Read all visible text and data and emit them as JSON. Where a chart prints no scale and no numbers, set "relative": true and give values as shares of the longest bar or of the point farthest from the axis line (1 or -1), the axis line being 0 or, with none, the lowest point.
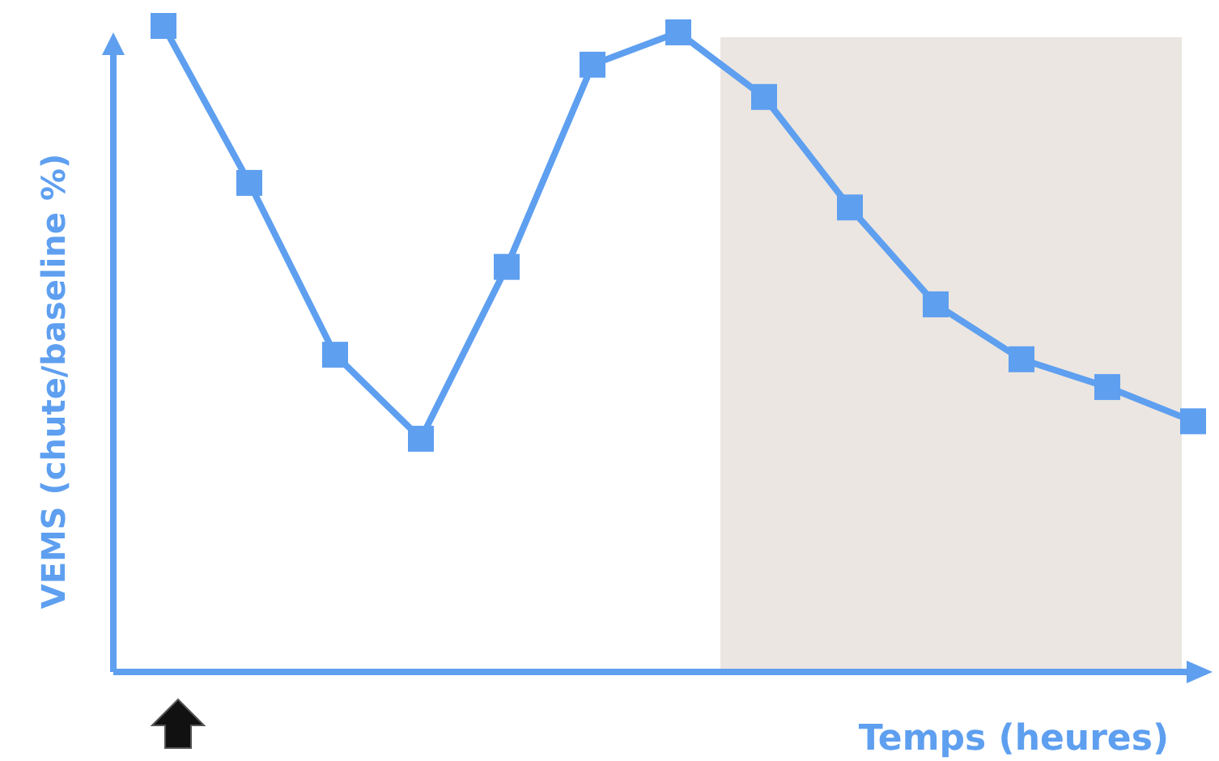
{
  "chart_data": {
    "type": "line",
    "relative": true,
    "xlabel": "Temps (heures)",
    "ylabel": "VEMS (chute/baseline %)",
    "marker": "square",
    "line_style": "solid",
    "categories": [
      null,
      null,
      null,
      null,
      null,
      null,
      null,
      null,
      null,
      null,
      null,
      null,
      null
    ],
    "series": [
      {
        "color": "#5e9ff0",
        "values": [
          1,
          0.757,
          0.491,
          0.361,
          0.627,
          0.94,
          0.99,
          0.89,
          0.719,
          0.569,
          0.484,
          0.441,
          0.388
        ]
      }
    ]
  }
}
